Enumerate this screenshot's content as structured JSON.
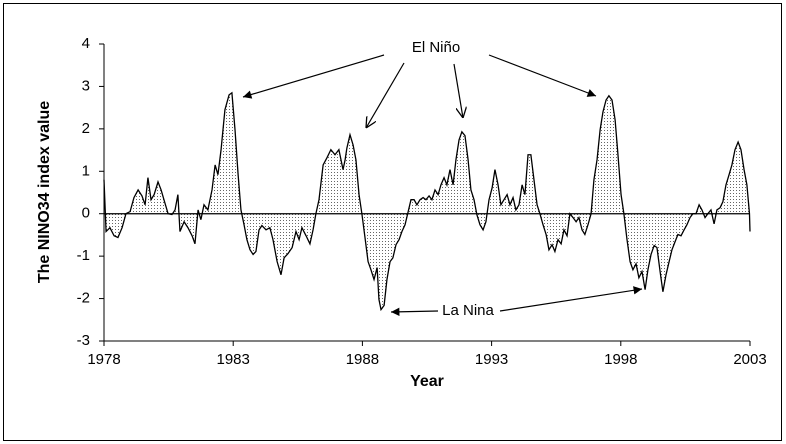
{
  "chart_data": {
    "type": "area",
    "x_label": "Year",
    "y_label": "The NINO34 index value",
    "annotations": [
      "El Niño",
      "La Nina"
    ],
    "color": "#000000",
    "xlim": [
      1978,
      2003
    ],
    "xticks": [
      1978,
      1983,
      1988,
      1993,
      1998,
      2003
    ],
    "ylim": [
      -3,
      4
    ],
    "yticks": [
      -3,
      -2,
      -1,
      0,
      1,
      2,
      3,
      4
    ],
    "grid": false,
    "x": [
      1978.0,
      1978.08,
      1978.23,
      1978.39,
      1978.54,
      1978.7,
      1978.85,
      1979.01,
      1979.16,
      1979.32,
      1979.47,
      1979.59,
      1979.7,
      1979.82,
      1979.94,
      1980.09,
      1980.21,
      1980.32,
      1980.48,
      1980.63,
      1980.75,
      1980.86,
      1980.94,
      1981.1,
      1981.25,
      1981.41,
      1981.52,
      1981.64,
      1981.75,
      1981.87,
      1982.02,
      1982.18,
      1982.3,
      1982.41,
      1982.53,
      1982.68,
      1982.84,
      1982.95,
      1983.07,
      1983.19,
      1983.3,
      1983.42,
      1983.53,
      1983.65,
      1983.77,
      1983.88,
      1984.0,
      1984.11,
      1984.27,
      1984.42,
      1984.54,
      1984.7,
      1984.85,
      1984.97,
      1985.12,
      1985.28,
      1985.43,
      1985.55,
      1985.66,
      1985.82,
      1985.97,
      1986.09,
      1986.2,
      1986.32,
      1986.48,
      1986.63,
      1986.78,
      1986.94,
      1987.09,
      1987.25,
      1987.33,
      1987.4,
      1987.52,
      1987.64,
      1987.75,
      1987.87,
      1987.98,
      1988.1,
      1988.22,
      1988.33,
      1988.45,
      1988.57,
      1988.64,
      1988.72,
      1988.84,
      1988.95,
      1989.07,
      1989.18,
      1989.3,
      1989.42,
      1989.53,
      1989.65,
      1989.76,
      1989.88,
      1990.0,
      1990.11,
      1990.23,
      1990.35,
      1990.46,
      1990.58,
      1990.69,
      1990.81,
      1990.93,
      1991.04,
      1991.16,
      1991.27,
      1991.39,
      1991.51,
      1991.62,
      1991.74,
      1991.85,
      1991.97,
      1992.09,
      1992.2,
      1992.32,
      1992.43,
      1992.55,
      1992.67,
      1992.78,
      1992.9,
      1993.02,
      1993.13,
      1993.25,
      1993.36,
      1993.48,
      1993.6,
      1993.71,
      1993.83,
      1993.94,
      1994.06,
      1994.18,
      1994.29,
      1994.41,
      1994.52,
      1994.64,
      1994.76,
      1994.87,
      1994.99,
      1995.11,
      1995.22,
      1995.34,
      1995.45,
      1995.57,
      1995.69,
      1995.8,
      1995.92,
      1996.03,
      1996.15,
      1996.27,
      1996.38,
      1996.5,
      1996.61,
      1996.73,
      1996.85,
      1996.96,
      1997.08,
      1997.2,
      1997.31,
      1997.43,
      1997.54,
      1997.66,
      1997.78,
      1997.89,
      1998.01,
      1998.12,
      1998.24,
      1998.36,
      1998.47,
      1998.59,
      1998.7,
      1998.82,
      1998.94,
      1999.05,
      1999.17,
      1999.29,
      1999.4,
      1999.52,
      1999.63,
      1999.75,
      1999.87,
      1999.98,
      2000.1,
      2000.21,
      2000.33,
      2000.45,
      2000.56,
      2000.68,
      2000.79,
      2000.91,
      2001.03,
      2001.14,
      2001.26,
      2001.37,
      2001.49,
      2001.61,
      2001.72,
      2001.84,
      2001.95,
      2002.07,
      2002.19,
      2002.3,
      2002.42,
      2002.54,
      2002.65,
      2002.77,
      2002.88,
      2002.98,
      2003.0
    ],
    "values": [
      0.8,
      -0.42,
      -0.33,
      -0.52,
      -0.56,
      -0.33,
      0,
      0.05,
      0.38,
      0.56,
      0.42,
      0.21,
      0.85,
      0.33,
      0.45,
      0.75,
      0.56,
      0.33,
      0,
      -0.02,
      0.09,
      0.45,
      -0.42,
      -0.19,
      -0.33,
      -0.52,
      -0.71,
      0.09,
      -0.14,
      0.21,
      0.09,
      0.56,
      1.15,
      0.92,
      1.51,
      2.45,
      2.8,
      2.85,
      1.98,
      0.92,
      0.09,
      -0.26,
      -0.61,
      -0.85,
      -0.96,
      -0.89,
      -0.38,
      -0.28,
      -0.38,
      -0.33,
      -0.61,
      -1.13,
      -1.44,
      -1.04,
      -0.94,
      -0.8,
      -0.42,
      -0.61,
      -0.33,
      -0.52,
      -0.71,
      -0.38,
      0,
      0.33,
      1.15,
      1.32,
      1.51,
      1.39,
      1.51,
      1.04,
      1.27,
      1.55,
      1.86,
      1.62,
      1.27,
      0.45,
      0,
      -0.56,
      -1.13,
      -1.32,
      -1.55,
      -1.27,
      -2.02,
      -2.26,
      -2.16,
      -1.55,
      -1.13,
      -1.04,
      -0.73,
      -0.61,
      -0.42,
      -0.26,
      0.02,
      0.33,
      0.33,
      0.21,
      0.33,
      0.38,
      0.33,
      0.42,
      0.33,
      0.56,
      0.45,
      0.68,
      0.85,
      0.68,
      1.04,
      0.68,
      1.27,
      1.74,
      1.93,
      1.84,
      1.27,
      0.56,
      0.33,
      -0.02,
      -0.26,
      -0.38,
      -0.19,
      0.33,
      0.61,
      1.04,
      0.68,
      0.21,
      0.33,
      0.45,
      0.21,
      0.38,
      0.09,
      0.21,
      0.68,
      0.45,
      1.39,
      1.39,
      0.8,
      0.21,
      0,
      -0.26,
      -0.49,
      -0.85,
      -0.73,
      -0.89,
      -0.61,
      -0.71,
      -0.38,
      -0.52,
      0,
      -0.09,
      -0.19,
      -0.09,
      -0.38,
      -0.49,
      -0.26,
      0,
      0.8,
      1.27,
      1.98,
      2.4,
      2.68,
      2.78,
      2.68,
      2.21,
      1.39,
      0.45,
      0,
      -0.61,
      -1.13,
      -1.32,
      -1.18,
      -1.51,
      -1.36,
      -1.79,
      -1.32,
      -0.96,
      -0.75,
      -0.8,
      -1.36,
      -1.84,
      -1.44,
      -1.13,
      -0.85,
      -0.66,
      -0.49,
      -0.52,
      -0.38,
      -0.26,
      -0.09,
      0,
      0,
      0.21,
      0.09,
      -0.09,
      0,
      0.09,
      -0.24,
      0.09,
      0.14,
      0.28,
      0.68,
      0.92,
      1.15,
      1.51,
      1.69,
      1.51,
      1.04,
      0.68,
      0,
      -0.42
    ]
  }
}
